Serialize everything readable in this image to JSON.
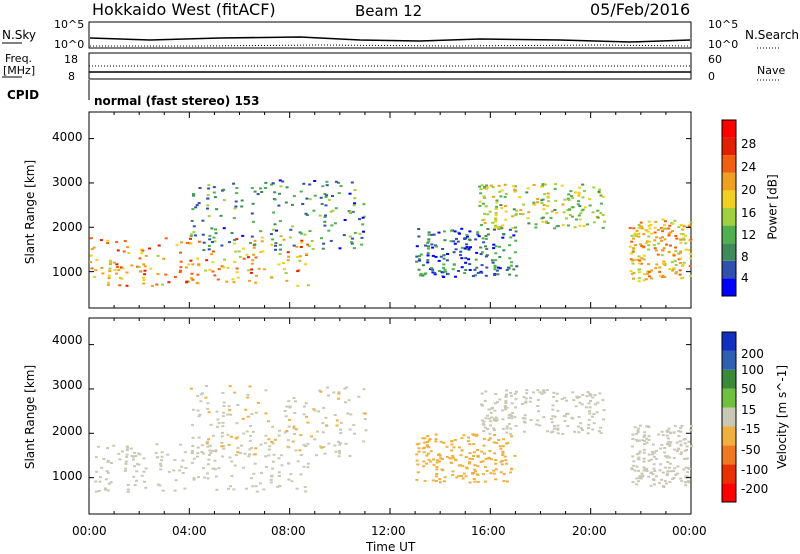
{
  "header": {
    "station": "Hokkaido West (fitACF)",
    "beam": "Beam 12",
    "date": "05/Feb/2016"
  },
  "noise_panel": {
    "left_label": "N.Sky",
    "right_label": "N.Search",
    "tick_top": "10^5",
    "tick_bottom": "10^0"
  },
  "freq_panel": {
    "left_label_line1": "Freq.",
    "left_label_line2": "[MHz]",
    "left_ticks": [
      "18",
      "8"
    ],
    "right_label": "Nave",
    "right_ticks": [
      "60",
      "0"
    ]
  },
  "cpid": {
    "label": "CPID",
    "value": "normal (fast stereo) 153"
  },
  "colors": {
    "power_scale": [
      "#0000ff",
      "#3050b0",
      "#408a5a",
      "#50b050",
      "#a0d040",
      "#f0d020",
      "#f0a020",
      "#f06010",
      "#e02000",
      "#ff0000"
    ],
    "velocity_scale": [
      "#ff0000",
      "#e83000",
      "#f07820",
      "#f0b040",
      "#c8c8b4",
      "#70c040",
      "#3a8a3a",
      "#3060b0",
      "#1030c0"
    ]
  },
  "chart_data": [
    {
      "type": "heatmap",
      "title": "",
      "ylabel": "Slant Range [km]",
      "ylim": [
        180,
        4600
      ],
      "yticks": [
        "4000",
        "3000",
        "2000",
        "1000"
      ],
      "xlim": [
        "00:00",
        "24:00"
      ],
      "colorbar_label": "Power [dB]",
      "colorbar_ticks": [
        "28",
        "24",
        "20",
        "16",
        "12",
        "8",
        "4"
      ],
      "colorbar_range": [
        0,
        30
      ],
      "regions": [
        {
          "t": [
            0.0,
            8.7
          ],
          "range": [
            700,
            1800
          ],
          "value": 20
        },
        {
          "t": [
            4.0,
            11.0
          ],
          "range": [
            1500,
            3100
          ],
          "value": 8
        },
        {
          "t": [
            13.0,
            17.0
          ],
          "range": [
            900,
            2000
          ],
          "value": 6
        },
        {
          "t": [
            15.5,
            20.5
          ],
          "range": [
            2000,
            3000
          ],
          "value": 14
        },
        {
          "t": [
            21.5,
            24.0
          ],
          "range": [
            800,
            2200
          ],
          "value": 18
        }
      ]
    },
    {
      "type": "heatmap",
      "title": "",
      "ylabel": "Slant Range [km]",
      "ylim": [
        180,
        4600
      ],
      "yticks": [
        "4000",
        "3000",
        "2000",
        "1000"
      ],
      "xlabel": "Time UT",
      "xticks": [
        "00:00",
        "04:00",
        "08:00",
        "12:00",
        "16:00",
        "20:00",
        "00:00"
      ],
      "colorbar_label": "Velocity [m s^-1]",
      "colorbar_ticks": [
        "200",
        "100",
        "50",
        "15",
        "-15",
        "-50",
        "-100",
        "-200"
      ],
      "colorbar_range": [
        -250,
        250
      ],
      "regions": [
        {
          "t": [
            0.0,
            8.7
          ],
          "range": [
            700,
            1800
          ],
          "value": 0
        },
        {
          "t": [
            4.0,
            11.0
          ],
          "range": [
            1500,
            3100
          ],
          "value": -20
        },
        {
          "t": [
            13.0,
            17.0
          ],
          "range": [
            900,
            2000
          ],
          "value": -60
        },
        {
          "t": [
            15.5,
            20.5
          ],
          "range": [
            2000,
            3000
          ],
          "value": 0
        },
        {
          "t": [
            21.5,
            24.0
          ],
          "range": [
            800,
            2200
          ],
          "value": 0
        }
      ]
    }
  ]
}
